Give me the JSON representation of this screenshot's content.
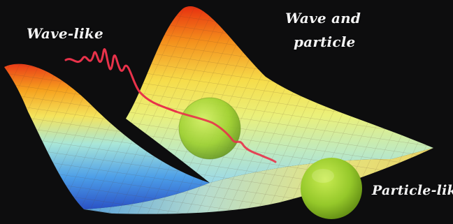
{
  "labels": {
    "wave_like": "Wave-like",
    "wave_and_particle_line1": "Wave and",
    "wave_and_particle_line2": "particle",
    "particle_like": "Particle-like"
  },
  "colors": {
    "background": "#0d0d0e",
    "wave_trace": "#e8324a",
    "sphere": "#9ed82e",
    "surface_high": "#e8401a",
    "surface_mid": "#f2e05a",
    "surface_low": "#2f6fd6",
    "label_text": "#f4f4f4"
  }
}
